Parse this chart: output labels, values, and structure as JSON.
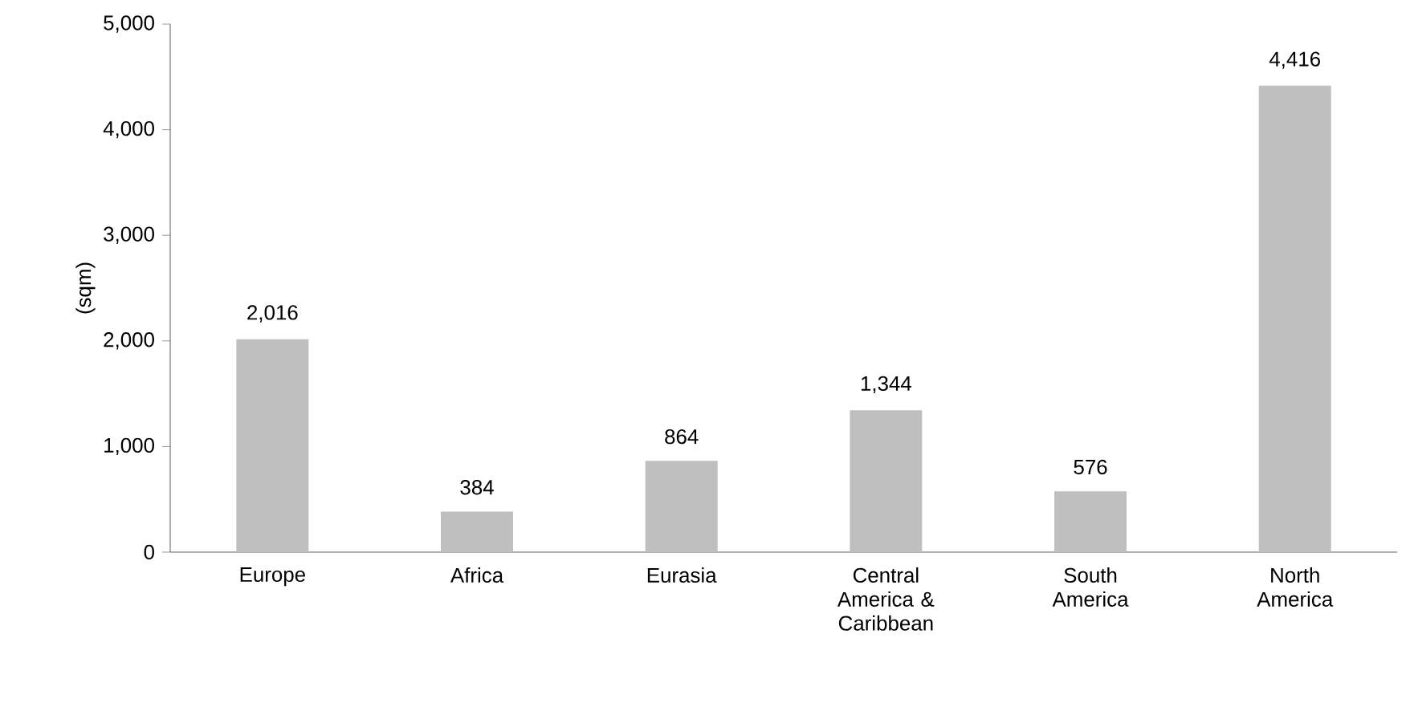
{
  "chart_data": {
    "type": "bar",
    "ylabel": "(sqm)",
    "categories": [
      "Europe",
      "Africa",
      "Eurasia",
      "Central America & Caribbean",
      "South America",
      "North America"
    ],
    "values": [
      2016,
      384,
      864,
      1344,
      576,
      4416
    ],
    "value_labels": [
      "2,016",
      "384",
      "864",
      "1,344",
      "576",
      "4,416"
    ],
    "color": "#bfbfbf",
    "ylim": [
      0,
      5000
    ],
    "yticks": [
      {
        "value": 0,
        "label": "0"
      },
      {
        "value": 1000,
        "label": "1,000"
      },
      {
        "value": 2000,
        "label": "2,000"
      },
      {
        "value": 3000,
        "label": "3,000"
      },
      {
        "value": 4000,
        "label": "4,000"
      },
      {
        "value": 5000,
        "label": "5,000"
      }
    ],
    "grid": false
  }
}
